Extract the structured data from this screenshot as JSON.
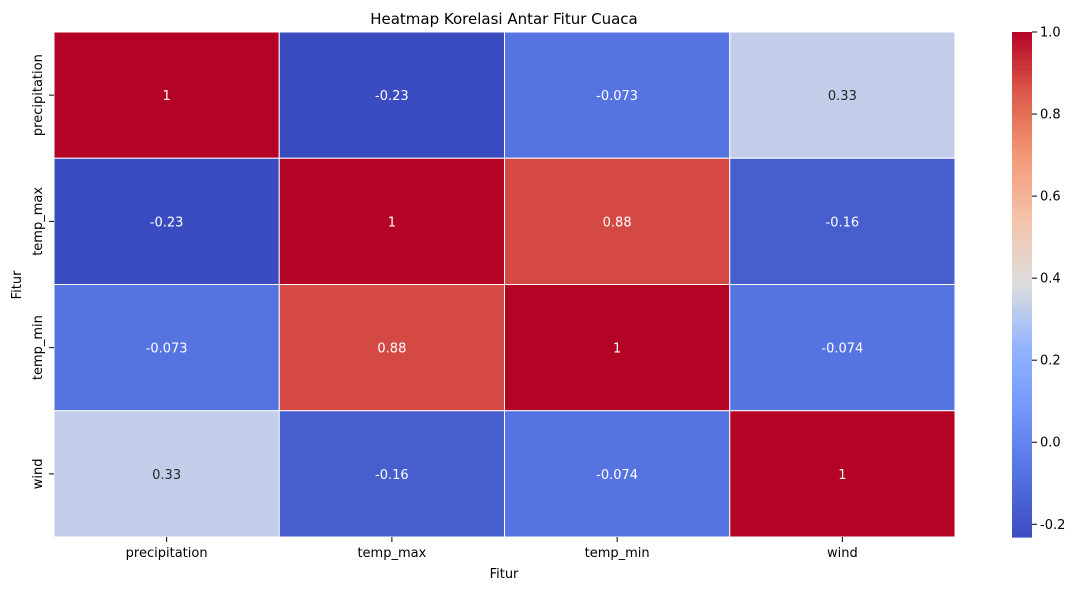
{
  "chart_data": {
    "type": "heatmap",
    "title": "Heatmap Korelasi Antar Fitur Cuaca",
    "xlabel": "Fitur",
    "ylabel": "Fitur",
    "x_categories": [
      "precipitation",
      "temp_max",
      "temp_min",
      "wind"
    ],
    "y_categories": [
      "precipitation",
      "temp_max",
      "temp_min",
      "wind"
    ],
    "values": [
      [
        1,
        -0.23,
        -0.073,
        0.33
      ],
      [
        -0.23,
        1,
        0.88,
        -0.16
      ],
      [
        -0.073,
        0.88,
        1,
        -0.074
      ],
      [
        0.33,
        -0.16,
        -0.074,
        1
      ]
    ],
    "colormap": "coolwarm",
    "colorbar": {
      "vmin": -0.231,
      "vmax": 1.0,
      "ticks": [
        "-0.2",
        "0.0",
        "0.2",
        "0.4",
        "0.6",
        "0.8",
        "1.0"
      ]
    }
  }
}
